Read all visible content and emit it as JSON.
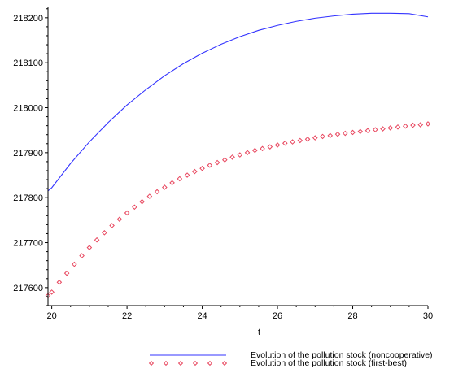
{
  "chart_data": {
    "type": "line",
    "xlabel": "t",
    "ylabel": "",
    "title": "",
    "xlim": [
      19.9,
      30
    ],
    "ylim": [
      217560,
      218225
    ],
    "xticks": [
      20,
      22,
      24,
      26,
      28,
      30
    ],
    "yticks": [
      217600,
      217700,
      217800,
      217900,
      218000,
      218100,
      218200
    ],
    "grid": false,
    "legend_position": "bottom",
    "series": [
      {
        "name": "Evolution of the pollution stock (noncooperative)",
        "style": "solid-line",
        "color": "#3333ff",
        "x": [
          19.9,
          20,
          20.5,
          21,
          21.5,
          22,
          22.5,
          23,
          23.5,
          24,
          24.5,
          25,
          25.5,
          26,
          26.5,
          27,
          27.5,
          28,
          28.5,
          29,
          29.5,
          30
        ],
        "y": [
          217815,
          217822,
          217876,
          217924,
          217967,
          218006,
          218040,
          218071,
          218098,
          218121,
          218141,
          218158,
          218172,
          218183,
          218192,
          218199,
          218204,
          218208,
          218210,
          218210,
          218209,
          218202
        ]
      },
      {
        "name": "Evolution of the pollution stock (first-best)",
        "style": "diamond-markers",
        "color": "#e8475f",
        "x": [
          19.9,
          20,
          20.2,
          20.4,
          20.6,
          20.8,
          21,
          21.2,
          21.4,
          21.6,
          21.8,
          22,
          22.2,
          22.4,
          22.6,
          22.8,
          23,
          23.2,
          23.4,
          23.6,
          23.8,
          24,
          24.2,
          24.4,
          24.6,
          24.8,
          25,
          25.2,
          25.4,
          25.6,
          25.8,
          26,
          26.2,
          26.4,
          26.6,
          26.8,
          27,
          27.2,
          27.4,
          27.6,
          27.8,
          28,
          28.2,
          28.4,
          28.6,
          28.8,
          29,
          29.2,
          29.4,
          29.6,
          29.8,
          30
        ],
        "y": [
          217582,
          217590,
          217612,
          217632,
          217652,
          217671,
          217689,
          217706,
          217722,
          217738,
          217752,
          217766,
          217779,
          217791,
          217803,
          217813,
          217823,
          217833,
          217842,
          217850,
          217858,
          217865,
          217872,
          217878,
          217884,
          217890,
          217895,
          217900,
          217905,
          217909,
          217913,
          217917,
          217921,
          217924,
          217927,
          217930,
          217933,
          217936,
          217938,
          217941,
          217943,
          217945,
          217947,
          217949,
          217951,
          217953,
          217955,
          217957,
          217959,
          217961,
          217962,
          217964
        ]
      }
    ]
  }
}
